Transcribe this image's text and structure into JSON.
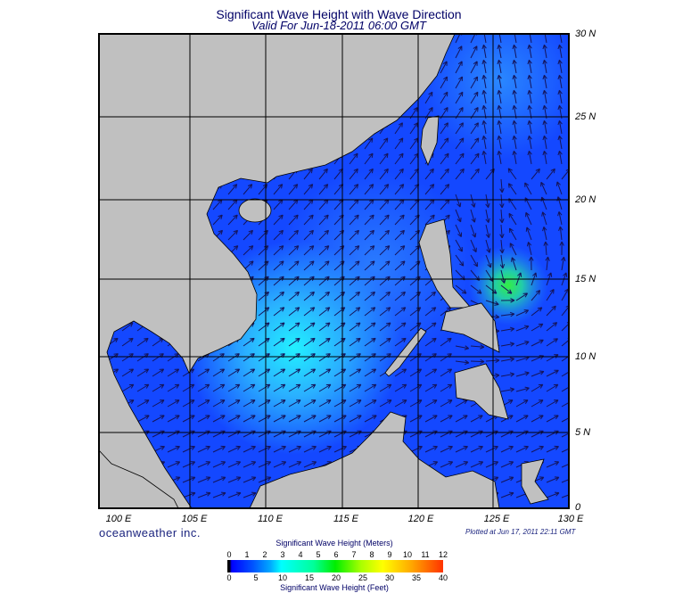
{
  "header": {
    "title": "Significant Wave Height with Wave Direction",
    "subtitle": "Valid For Jun-18-2011 06:00 GMT"
  },
  "axes": {
    "longitude_labels": [
      "100 E",
      "105 E",
      "110 E",
      "115 E",
      "120 E",
      "125 E",
      "130 E"
    ],
    "latitude_labels": [
      "30 N",
      "25 N",
      "20 N",
      "15 N",
      "10 N",
      "5 N",
      "0"
    ]
  },
  "footer": {
    "brand": "oceanweather inc.",
    "plotted": "Plotted at Jun 17, 2011 22:11 GMT"
  },
  "colorbar": {
    "meters_title": "Significant Wave Height (Meters)",
    "feet_title": "Significant Wave Height (Feet)",
    "meters_ticks": [
      "0",
      "1",
      "2",
      "3",
      "4",
      "5",
      "6",
      "7",
      "8",
      "9",
      "10",
      "11",
      "12"
    ],
    "feet_ticks": [
      "0",
      "5",
      "10",
      "15",
      "20",
      "25",
      "30",
      "35",
      "40"
    ]
  },
  "colors": {
    "land": "#c0c0c0",
    "ocean_base": "#1448ff",
    "arrow": "#14145a"
  }
}
